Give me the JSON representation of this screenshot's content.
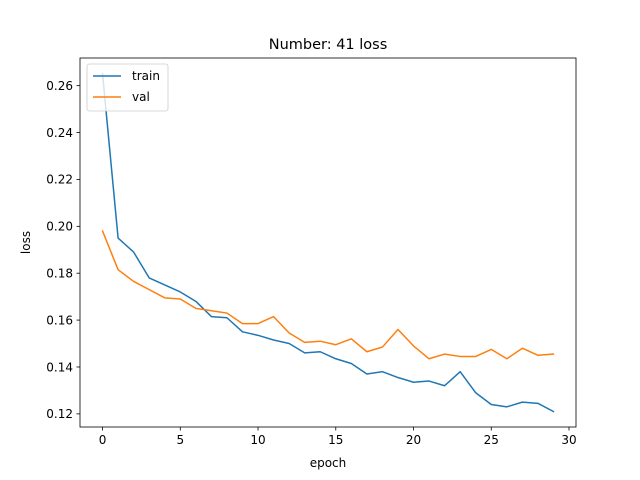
{
  "chart_data": {
    "type": "line",
    "title": "Number: 41 loss",
    "xlabel": "epoch",
    "ylabel": "loss",
    "xlim": [
      -1.45,
      30.45
    ],
    "ylim": [
      0.1144,
      0.2718
    ],
    "xticks": [
      0,
      5,
      10,
      15,
      20,
      25,
      30
    ],
    "yticks": [
      0.12,
      0.14,
      0.16,
      0.18,
      0.2,
      0.22,
      0.24,
      0.26
    ],
    "ytick_labels": [
      "0.12",
      "0.14",
      "0.16",
      "0.18",
      "0.20",
      "0.22",
      "0.24",
      "0.26"
    ],
    "grid": false,
    "legend_position": "upper-left",
    "x": [
      0,
      1,
      2,
      3,
      4,
      5,
      6,
      7,
      8,
      9,
      10,
      11,
      12,
      13,
      14,
      15,
      16,
      17,
      18,
      19,
      20,
      21,
      22,
      23,
      24,
      25,
      26,
      27,
      28,
      29
    ],
    "series": [
      {
        "name": "train",
        "color": "#1f77b4",
        "values": [
          0.265,
          0.195,
          0.189,
          0.178,
          0.175,
          0.172,
          0.168,
          0.1615,
          0.161,
          0.155,
          0.1535,
          0.1515,
          0.15,
          0.146,
          0.1465,
          0.1435,
          0.1415,
          0.137,
          0.138,
          0.1355,
          0.1335,
          0.134,
          0.132,
          0.138,
          0.129,
          0.124,
          0.123,
          0.125,
          0.1245,
          0.121
        ]
      },
      {
        "name": "val",
        "color": "#ff7f0e",
        "values": [
          0.198,
          0.1815,
          0.1765,
          0.173,
          0.1695,
          0.169,
          0.165,
          0.164,
          0.163,
          0.1585,
          0.1585,
          0.1615,
          0.1545,
          0.1505,
          0.151,
          0.1495,
          0.152,
          0.1465,
          0.1485,
          0.156,
          0.149,
          0.1435,
          0.1455,
          0.1445,
          0.1445,
          0.1475,
          0.1435,
          0.148,
          0.145,
          0.1455
        ]
      }
    ]
  }
}
